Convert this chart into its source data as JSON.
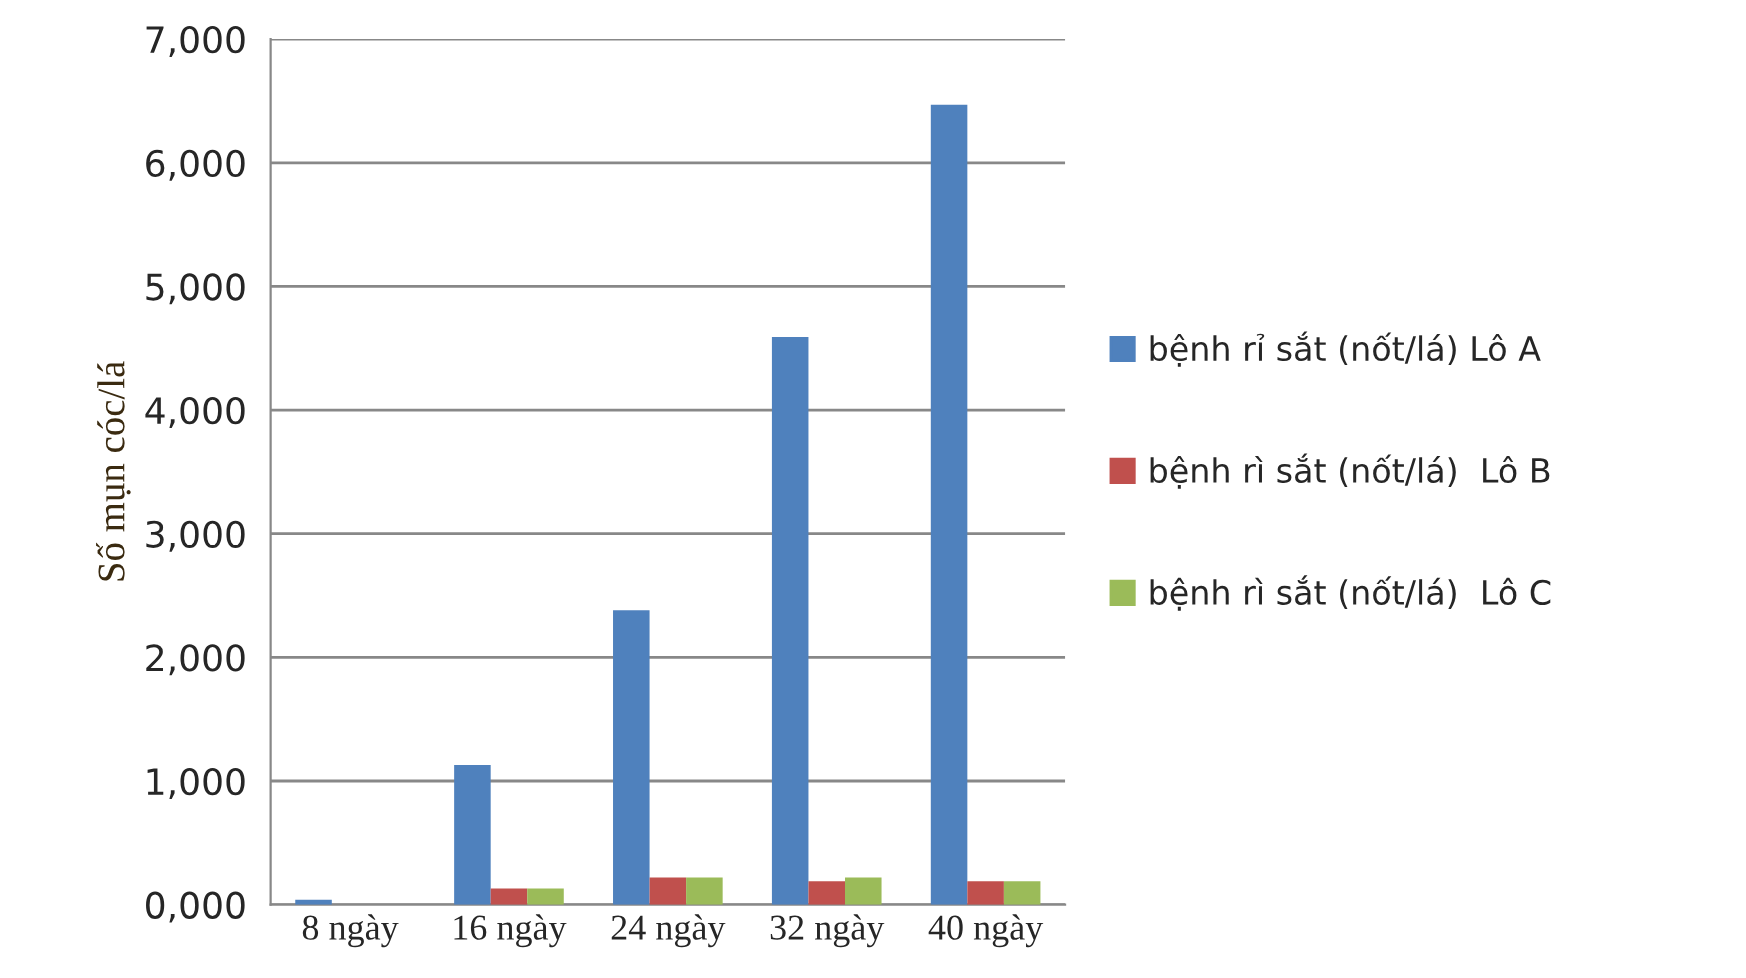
{
  "chart_data": {
    "type": "bar",
    "ylabel": "Số mụn cóc/lá",
    "categories": [
      "8 ngày",
      "16 ngày",
      "24 ngày",
      "32 ngày",
      "40 ngày"
    ],
    "series": [
      {
        "name": "bệnh rỉ sắt (nốt/lá) Lô A",
        "color": "#4f81bd",
        "values": [
          40,
          1130,
          2380,
          4590,
          6470
        ]
      },
      {
        "name": "bệnh rì sắt (nốt/lá)  Lô B",
        "color": "#c0504d",
        "values": [
          null,
          130,
          220,
          190,
          190
        ]
      },
      {
        "name": "bệnh rì sắt (nốt/lá)  Lô C",
        "color": "#9bbb59",
        "values": [
          null,
          130,
          220,
          220,
          190
        ]
      }
    ],
    "ylim": [
      0,
      7000
    ],
    "yticks": [
      {
        "value": 0,
        "label": "0,000"
      },
      {
        "value": 1000,
        "label": "1,000"
      },
      {
        "value": 2000,
        "label": "2,000"
      },
      {
        "value": 3000,
        "label": "3,000"
      },
      {
        "value": 4000,
        "label": "4,000"
      },
      {
        "value": 5000,
        "label": "5,000"
      },
      {
        "value": 6000,
        "label": "6,000"
      },
      {
        "value": 7000,
        "label": "7,000"
      }
    ],
    "grid": "y",
    "legend": "right"
  }
}
